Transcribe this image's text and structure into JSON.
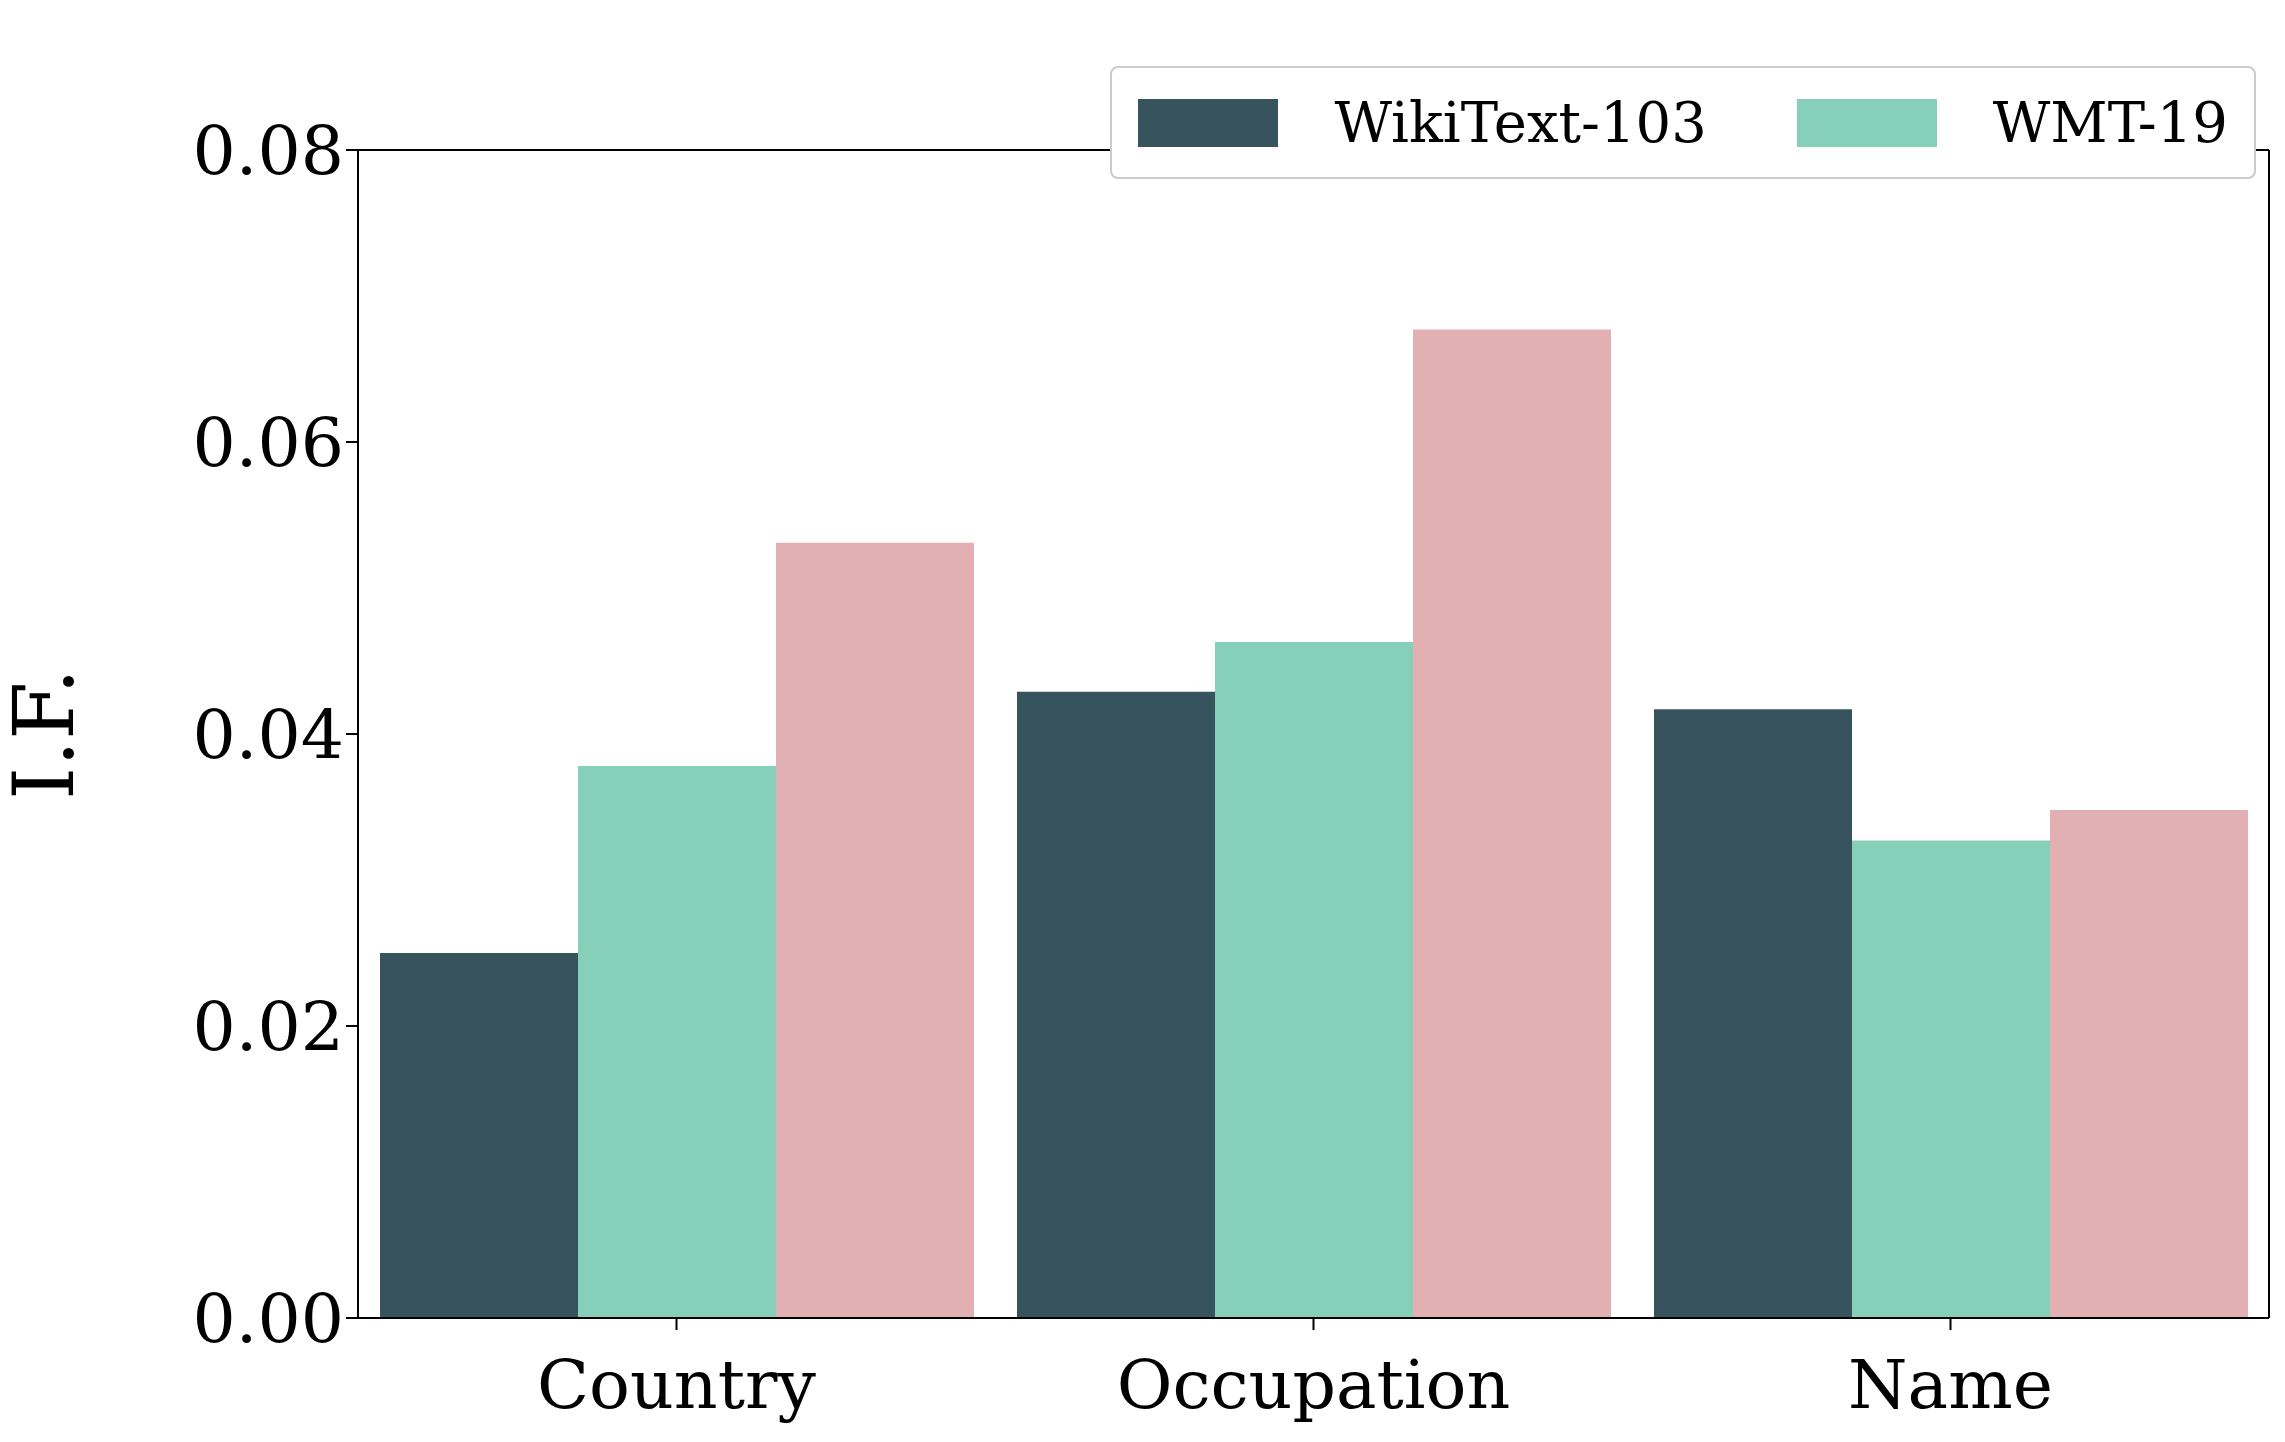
{
  "chart_data": {
    "type": "bar",
    "ylabel": "I.F.",
    "categories": [
      "Country",
      "Occupation",
      "Name"
    ],
    "series": [
      {
        "name": "WikiText-103",
        "color": "#37535e",
        "values": [
          0.025,
          0.0429,
          0.0417
        ]
      },
      {
        "name": "WMT-19",
        "color": "#86cfb8",
        "values": [
          0.0378,
          0.0463,
          0.0327
        ]
      },
      {
        "color": "#e2b0b3",
        "values": [
          0.0531,
          0.0677,
          0.0348
        ]
      }
    ],
    "ylim": [
      0,
      0.08
    ],
    "yticks": [
      {
        "value": 0,
        "label": "0.00"
      },
      {
        "value": 0.02,
        "label": "0.02"
      },
      {
        "value": 0.04,
        "label": "0.04"
      },
      {
        "value": 0.06,
        "label": "0.06"
      },
      {
        "value": 0.08,
        "label": "0.08"
      }
    ],
    "grid": false,
    "legend": "top"
  }
}
